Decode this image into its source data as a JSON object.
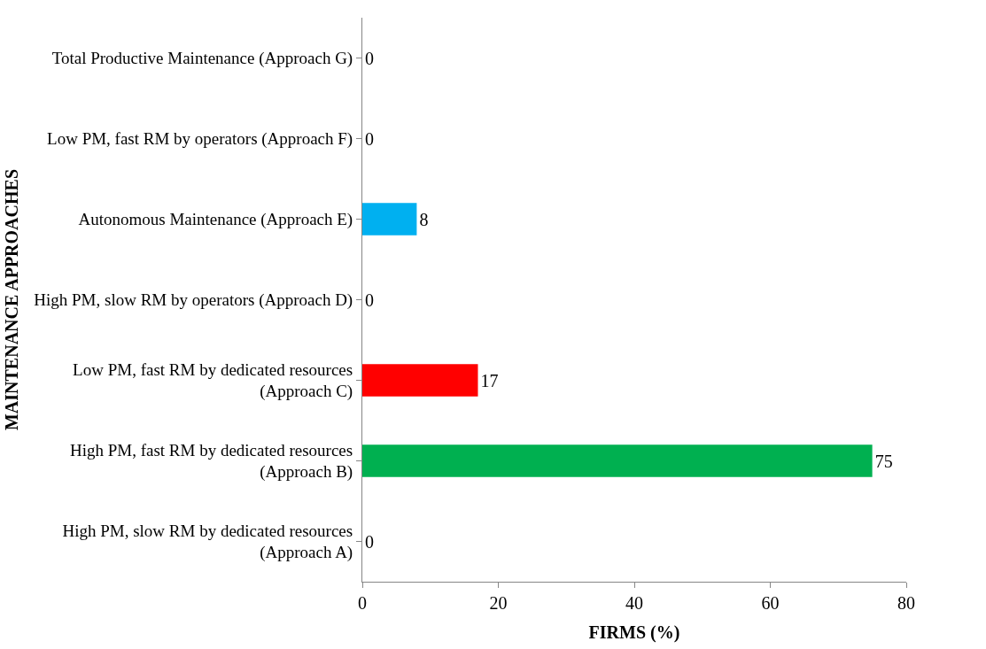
{
  "chart_data": {
    "type": "bar",
    "orientation": "horizontal",
    "xlabel": "FIRMS (%)",
    "ylabel": "MAINTENANCE APPROACHES",
    "categories": [
      "Total Productive Maintenance (Approach G)",
      "Low PM, fast RM by operators (Approach F)",
      "Autonomous Maintenance (Approach E)",
      "High PM, slow RM by operators (Approach D)",
      "Low PM, fast RM by dedicated resources\n(Approach C)",
      "High PM, fast RM by dedicated resources\n(Approach B)",
      "High PM, slow RM by dedicated resources\n(Approach A)"
    ],
    "values": [
      0,
      0,
      8,
      0,
      17,
      75,
      0
    ],
    "colors": [
      "#4472c4",
      "#4472c4",
      "#00b0f0",
      "#4472c4",
      "#ff0000",
      "#00b050",
      "#4472c4"
    ],
    "xlim": [
      0,
      80
    ],
    "xticks": [
      0,
      20,
      40,
      60,
      80
    ],
    "data_labels": true,
    "legend": false
  }
}
